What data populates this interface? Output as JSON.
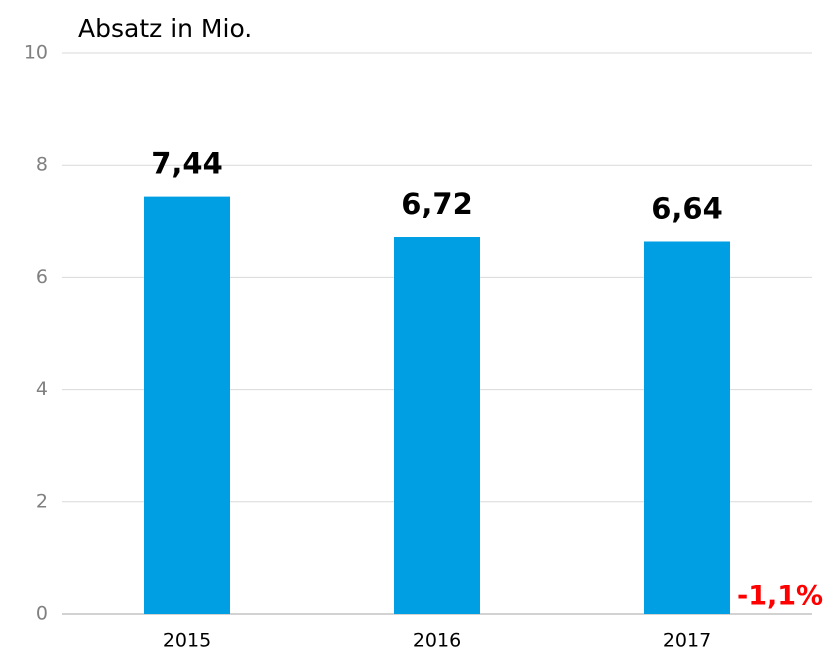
{
  "chart_data": {
    "type": "bar",
    "title": "Absatz in Mio.",
    "categories": [
      "2015",
      "2016",
      "2017"
    ],
    "values": [
      7.44,
      6.72,
      6.64
    ],
    "value_labels": [
      "7,44",
      "6,72",
      "6,64"
    ],
    "color": "#009fe3",
    "annotation": "-1,1%",
    "ylim": [
      0,
      10
    ],
    "yticks": [
      0,
      2,
      4,
      6,
      8,
      10
    ],
    "grid": true
  }
}
